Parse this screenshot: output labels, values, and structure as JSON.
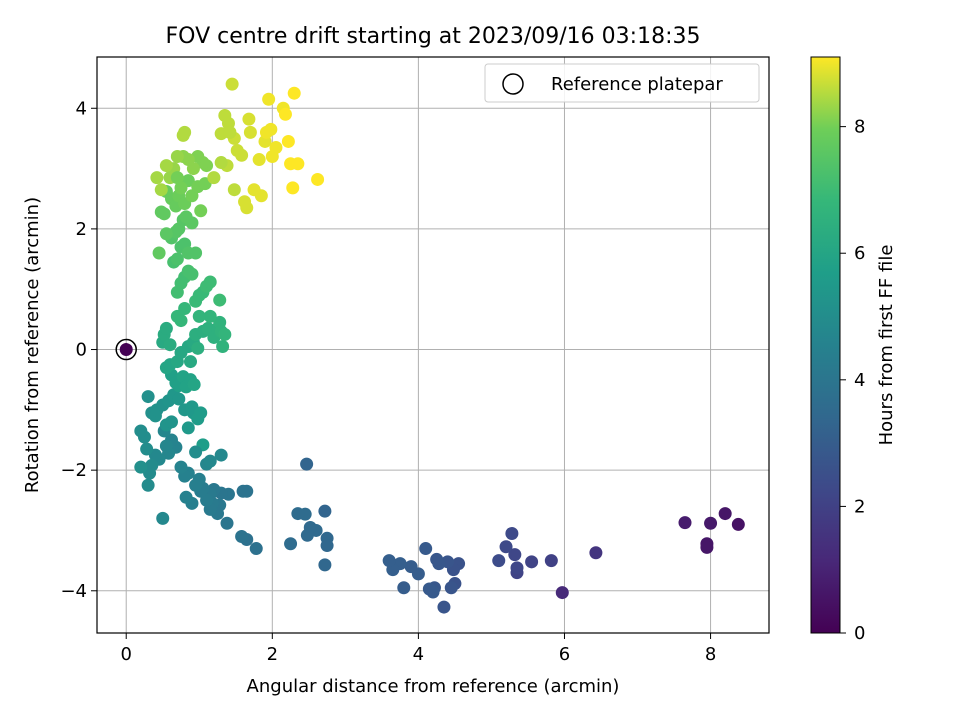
{
  "chart_data": {
    "type": "scatter",
    "title": "FOV centre drift starting at 2023/09/16 03:18:35",
    "xlabel": "Angular distance from reference (arcmin)",
    "ylabel": "Rotation from reference (arcmin)",
    "xlim": [
      -0.4,
      8.8
    ],
    "ylim": [
      -4.7,
      4.85
    ],
    "xticks": [
      0,
      2,
      4,
      6,
      8
    ],
    "yticks": [
      -4,
      -2,
      0,
      2,
      4
    ],
    "grid": true,
    "legend": {
      "position": "top-right",
      "entries": [
        "Reference platepar"
      ]
    },
    "colorbar": {
      "label": "Hours from first FF file",
      "colormap": "viridis",
      "range": [
        0,
        9.1
      ],
      "ticks": [
        0,
        2,
        4,
        6,
        8
      ]
    },
    "reference_point": {
      "x": 0,
      "y": 0,
      "color": 0.0
    },
    "points": [
      [
        7.65,
        -2.87,
        0.8
      ],
      [
        8.0,
        -2.88,
        0.7
      ],
      [
        7.95,
        -3.22,
        0.6
      ],
      [
        7.95,
        -3.28,
        0.6
      ],
      [
        8.2,
        -2.72,
        0.6
      ],
      [
        8.38,
        -2.9,
        0.5
      ],
      [
        5.97,
        -4.03,
        1.2
      ],
      [
        6.43,
        -3.37,
        1.6
      ],
      [
        5.82,
        -3.5,
        2.0
      ],
      [
        5.55,
        -3.52,
        2.1
      ],
      [
        5.35,
        -3.7,
        2.1
      ],
      [
        5.35,
        -3.62,
        2.2
      ],
      [
        5.32,
        -3.4,
        2.2
      ],
      [
        5.28,
        -3.05,
        2.3
      ],
      [
        5.2,
        -3.27,
        2.3
      ],
      [
        5.1,
        -3.5,
        2.4
      ],
      [
        4.55,
        -3.55,
        2.6
      ],
      [
        4.5,
        -3.88,
        2.6
      ],
      [
        4.48,
        -3.65,
        2.6
      ],
      [
        4.45,
        -3.95,
        2.7
      ],
      [
        4.4,
        -3.52,
        2.7
      ],
      [
        4.35,
        -4.27,
        2.7
      ],
      [
        4.28,
        -3.55,
        2.8
      ],
      [
        4.25,
        -3.48,
        2.8
      ],
      [
        4.22,
        -3.95,
        2.8
      ],
      [
        4.2,
        -4.02,
        2.9
      ],
      [
        4.15,
        -3.97,
        2.9
      ],
      [
        4.1,
        -3.3,
        2.9
      ],
      [
        4.0,
        -3.72,
        3.0
      ],
      [
        3.9,
        -3.6,
        3.0
      ],
      [
        3.8,
        -3.95,
        3.0
      ],
      [
        3.75,
        -3.55,
        3.1
      ],
      [
        3.65,
        -3.65,
        3.1
      ],
      [
        3.6,
        -3.5,
        3.1
      ],
      [
        2.47,
        -1.9,
        3.3
      ],
      [
        2.72,
        -2.68,
        3.3
      ],
      [
        2.75,
        -3.13,
        3.4
      ],
      [
        2.75,
        -3.25,
        3.4
      ],
      [
        2.72,
        -3.57,
        3.4
      ],
      [
        2.6,
        -3.0,
        3.5
      ],
      [
        2.52,
        -2.95,
        3.5
      ],
      [
        2.48,
        -3.08,
        3.5
      ],
      [
        2.45,
        -2.73,
        3.6
      ],
      [
        2.35,
        -2.72,
        3.6
      ],
      [
        2.25,
        -3.22,
        3.6
      ],
      [
        1.78,
        -3.3,
        3.8
      ],
      [
        1.65,
        -3.15,
        3.8
      ],
      [
        1.58,
        -3.1,
        3.9
      ],
      [
        1.65,
        -2.35,
        3.9
      ],
      [
        1.6,
        -2.35,
        3.9
      ],
      [
        1.38,
        -2.88,
        4.0
      ],
      [
        1.4,
        -2.4,
        4.0
      ],
      [
        1.3,
        -2.38,
        4.0
      ],
      [
        1.28,
        -2.58,
        4.1
      ],
      [
        1.25,
        -2.72,
        4.1
      ],
      [
        1.2,
        -2.32,
        4.1
      ],
      [
        1.18,
        -2.55,
        4.2
      ],
      [
        1.15,
        -2.4,
        4.2
      ],
      [
        1.15,
        -2.65,
        4.2
      ],
      [
        1.1,
        -2.5,
        4.3
      ],
      [
        1.05,
        -2.3,
        4.3
      ],
      [
        1.02,
        -2.35,
        4.3
      ],
      [
        1.0,
        -2.15,
        4.4
      ],
      [
        0.95,
        -2.25,
        4.4
      ],
      [
        0.9,
        -2.55,
        4.4
      ],
      [
        0.85,
        -2.05,
        4.5
      ],
      [
        0.82,
        -2.45,
        4.5
      ],
      [
        0.8,
        -2.1,
        4.5
      ],
      [
        0.75,
        -1.95,
        4.6
      ],
      [
        0.68,
        -1.62,
        4.6
      ],
      [
        0.62,
        -1.5,
        4.6
      ],
      [
        0.58,
        -1.72,
        4.7
      ],
      [
        0.55,
        -1.6,
        4.7
      ],
      [
        0.52,
        -1.35,
        4.7
      ],
      [
        0.5,
        -2.8,
        4.8
      ],
      [
        0.45,
        -1.82,
        4.8
      ],
      [
        0.4,
        -1.75,
        4.8
      ],
      [
        0.35,
        -1.92,
        4.9
      ],
      [
        0.32,
        -2.05,
        4.9
      ],
      [
        0.3,
        -2.25,
        4.9
      ],
      [
        0.28,
        -1.65,
        5.0
      ],
      [
        0.25,
        -1.45,
        5.0
      ],
      [
        0.2,
        -1.35,
        5.0
      ],
      [
        0.2,
        -1.95,
        5.1
      ],
      [
        0.3,
        -0.78,
        5.1
      ],
      [
        0.35,
        -1.05,
        5.1
      ],
      [
        0.4,
        -1.1,
        5.2
      ],
      [
        0.42,
        -1.0,
        5.2
      ],
      [
        0.5,
        -0.92,
        5.2
      ],
      [
        0.55,
        -1.25,
        5.3
      ],
      [
        0.58,
        -0.85,
        5.3
      ],
      [
        0.62,
        -1.2,
        5.3
      ],
      [
        0.65,
        -0.75,
        5.4
      ],
      [
        0.72,
        -0.82,
        5.4
      ],
      [
        0.8,
        -1.0,
        5.4
      ],
      [
        0.85,
        -1.3,
        5.5
      ],
      [
        0.9,
        -0.95,
        5.5
      ],
      [
        0.92,
        -1.05,
        5.5
      ],
      [
        0.98,
        -1.15,
        5.6
      ],
      [
        1.02,
        -1.05,
        5.6
      ],
      [
        1.05,
        -1.58,
        5.7
      ],
      [
        0.95,
        -1.7,
        5.0
      ],
      [
        1.1,
        -1.9,
        4.7
      ],
      [
        1.15,
        -1.85,
        4.8
      ],
      [
        1.3,
        -1.75,
        4.8
      ],
      [
        0.62,
        -0.42,
        5.8
      ],
      [
        0.68,
        -0.55,
        5.8
      ],
      [
        0.72,
        -0.6,
        5.8
      ],
      [
        0.78,
        -0.45,
        5.9
      ],
      [
        0.82,
        -0.62,
        5.9
      ],
      [
        0.88,
        -0.5,
        5.9
      ],
      [
        0.93,
        -0.58,
        6.0
      ],
      [
        0.55,
        -0.3,
        6.0
      ],
      [
        0.6,
        -0.25,
        6.0
      ],
      [
        0.7,
        -0.2,
        6.1
      ],
      [
        0.75,
        -0.05,
        6.1
      ],
      [
        0.85,
        0.05,
        6.1
      ],
      [
        0.88,
        -0.2,
        6.2
      ],
      [
        0.92,
        0.12,
        6.2
      ],
      [
        0.5,
        0.12,
        6.2
      ],
      [
        0.52,
        0.25,
        6.3
      ],
      [
        0.55,
        0.35,
        6.3
      ],
      [
        0.6,
        0.08,
        6.3
      ],
      [
        0.95,
        0.25,
        6.4
      ],
      [
        0.98,
        0.02,
        6.4
      ],
      [
        1.05,
        0.3,
        6.4
      ],
      [
        1.12,
        0.35,
        6.5
      ],
      [
        1.2,
        0.2,
        6.5
      ],
      [
        1.25,
        0.35,
        6.5
      ],
      [
        1.28,
        0.45,
        6.6
      ],
      [
        1.3,
        0.3,
        6.6
      ],
      [
        1.32,
        0.05,
        6.6
      ],
      [
        1.35,
        0.25,
        6.7
      ],
      [
        1.15,
        0.55,
        6.7
      ],
      [
        1.0,
        0.55,
        6.7
      ],
      [
        0.7,
        0.55,
        6.8
      ],
      [
        0.75,
        0.48,
        6.8
      ],
      [
        0.8,
        0.68,
        6.8
      ],
      [
        0.95,
        0.8,
        6.9
      ],
      [
        1.0,
        0.9,
        6.9
      ],
      [
        1.05,
        0.95,
        6.9
      ],
      [
        1.1,
        1.05,
        7.0
      ],
      [
        1.15,
        1.12,
        7.0
      ],
      [
        1.28,
        0.82,
        7.0
      ],
      [
        0.7,
        0.95,
        7.1
      ],
      [
        0.75,
        1.1,
        7.1
      ],
      [
        0.8,
        1.2,
        7.1
      ],
      [
        0.85,
        1.3,
        7.2
      ],
      [
        0.9,
        1.25,
        7.2
      ],
      [
        0.65,
        1.45,
        7.2
      ],
      [
        0.7,
        1.5,
        7.3
      ],
      [
        0.75,
        1.7,
        7.3
      ],
      [
        0.8,
        1.75,
        7.3
      ],
      [
        0.85,
        1.6,
        7.4
      ],
      [
        0.95,
        1.6,
        7.4
      ],
      [
        0.62,
        1.85,
        7.4
      ],
      [
        0.68,
        1.95,
        7.5
      ],
      [
        0.72,
        2.0,
        7.5
      ],
      [
        0.78,
        2.15,
        7.5
      ],
      [
        0.82,
        2.2,
        7.6
      ],
      [
        0.9,
        2.1,
        7.6
      ],
      [
        0.55,
        1.92,
        7.6
      ],
      [
        0.45,
        1.6,
        7.7
      ],
      [
        0.48,
        2.28,
        7.7
      ],
      [
        0.52,
        2.25,
        7.7
      ],
      [
        0.55,
        2.62,
        7.8
      ],
      [
        0.62,
        2.5,
        7.8
      ],
      [
        0.68,
        2.38,
        7.8
      ],
      [
        0.72,
        2.55,
        7.9
      ],
      [
        0.8,
        2.42,
        7.9
      ],
      [
        0.85,
        2.8,
        7.9
      ],
      [
        0.9,
        2.55,
        8.0
      ],
      [
        0.98,
        2.7,
        8.0
      ],
      [
        1.02,
        2.3,
        8.0
      ],
      [
        1.08,
        2.75,
        8.0
      ],
      [
        1.1,
        3.05,
        8.1
      ],
      [
        1.05,
        3.1,
        8.1
      ],
      [
        0.98,
        3.2,
        8.1
      ],
      [
        0.92,
        3.0,
        8.2
      ],
      [
        0.85,
        3.15,
        8.2
      ],
      [
        0.78,
        3.2,
        8.2
      ],
      [
        0.7,
        3.2,
        8.3
      ],
      [
        0.65,
        3.0,
        8.3
      ],
      [
        0.6,
        2.85,
        8.3
      ],
      [
        0.55,
        3.05,
        8.4
      ],
      [
        0.42,
        2.85,
        8.4
      ],
      [
        0.48,
        2.65,
        8.4
      ],
      [
        0.78,
        3.55,
        8.5
      ],
      [
        0.8,
        3.6,
        8.5
      ],
      [
        1.2,
        2.85,
        8.5
      ],
      [
        1.3,
        3.58,
        8.6
      ],
      [
        1.35,
        3.88,
        8.6
      ],
      [
        1.4,
        3.75,
        8.6
      ],
      [
        1.45,
        4.4,
        8.7
      ],
      [
        1.48,
        3.5,
        8.7
      ],
      [
        1.52,
        3.3,
        8.7
      ],
      [
        1.58,
        3.22,
        8.7
      ],
      [
        1.62,
        2.45,
        8.8
      ],
      [
        1.65,
        2.35,
        8.8
      ],
      [
        1.68,
        3.82,
        8.8
      ],
      [
        1.7,
        3.6,
        8.8
      ],
      [
        1.75,
        2.65,
        8.9
      ],
      [
        1.82,
        3.15,
        8.9
      ],
      [
        1.85,
        2.55,
        8.9
      ],
      [
        1.9,
        3.45,
        8.9
      ],
      [
        1.92,
        3.6,
        9.0
      ],
      [
        1.95,
        4.15,
        9.0
      ],
      [
        1.98,
        3.65,
        9.0
      ],
      [
        2.0,
        3.2,
        9.0
      ],
      [
        2.05,
        3.35,
        9.0
      ],
      [
        2.15,
        4.0,
        9.0
      ],
      [
        2.18,
        3.9,
        9.1
      ],
      [
        2.22,
        3.45,
        9.1
      ],
      [
        2.25,
        3.08,
        9.1
      ],
      [
        2.28,
        2.68,
        9.1
      ],
      [
        2.3,
        4.25,
        9.1
      ],
      [
        2.35,
        3.08,
        9.1
      ],
      [
        2.62,
        2.82,
        9.1
      ],
      [
        1.38,
        3.05,
        8.6
      ],
      [
        1.42,
        3.6,
        8.6
      ],
      [
        1.3,
        3.1,
        8.5
      ],
      [
        1.48,
        2.65,
        8.6
      ],
      [
        0.7,
        2.85,
        8.0
      ],
      [
        0.75,
        2.68,
        8.0
      ]
    ]
  }
}
